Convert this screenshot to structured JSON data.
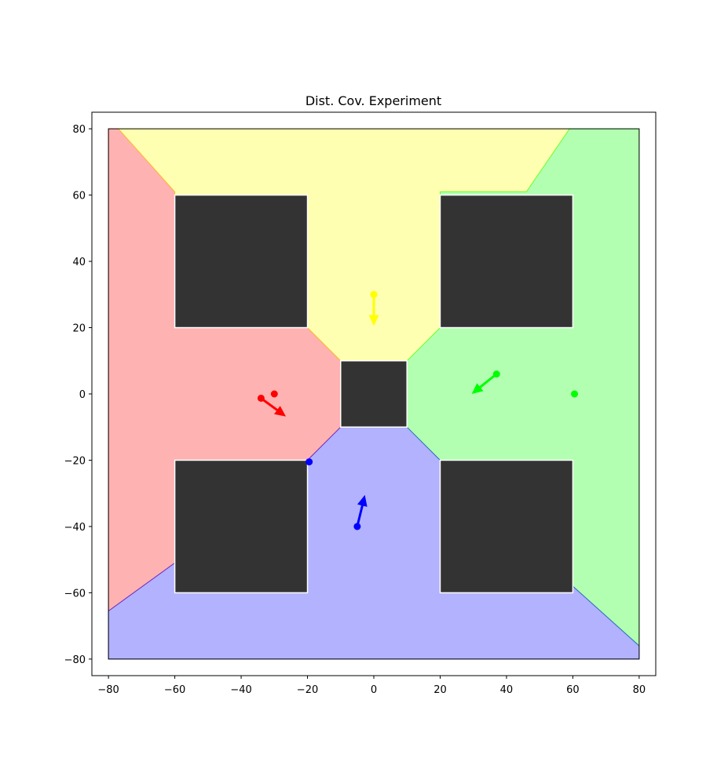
{
  "chart_data": {
    "type": "scatter",
    "title": "Dist. Cov. Experiment",
    "xlabel": "",
    "ylabel": "",
    "xlim": [
      -85,
      85
    ],
    "ylim": [
      -85,
      85
    ],
    "xticks": [
      -80,
      -60,
      -40,
      -20,
      0,
      20,
      40,
      60,
      80
    ],
    "yticks": [
      -80,
      -60,
      -40,
      -20,
      0,
      20,
      40,
      60,
      80
    ],
    "grid": false,
    "workspace": [
      [
        -80,
        -80
      ],
      [
        80,
        -80
      ],
      [
        80,
        80
      ],
      [
        -80,
        80
      ]
    ],
    "regions": [
      {
        "name": "red",
        "color": "#ff0000",
        "polygon": [
          [
            -80,
            80
          ],
          [
            -77,
            80
          ],
          [
            -60,
            61
          ],
          [
            -60,
            20
          ],
          [
            -20,
            20
          ],
          [
            -10,
            10
          ],
          [
            -10,
            -10
          ],
          [
            -20,
            -20
          ],
          [
            -60,
            -20
          ],
          [
            -60,
            -51
          ],
          [
            -80,
            -65.5
          ]
        ]
      },
      {
        "name": "yellow",
        "color": "#ffff00",
        "polygon": [
          [
            -77,
            80
          ],
          [
            59,
            80
          ],
          [
            46,
            61
          ],
          [
            20,
            61
          ],
          [
            20,
            20
          ],
          [
            10,
            10
          ],
          [
            -10,
            10
          ],
          [
            -20,
            20
          ],
          [
            -60,
            20
          ],
          [
            -60,
            61
          ]
        ]
      },
      {
        "name": "green",
        "color": "#00ff00",
        "polygon": [
          [
            59,
            80
          ],
          [
            80,
            80
          ],
          [
            80,
            -76
          ],
          [
            60,
            -58
          ],
          [
            60,
            -20
          ],
          [
            20,
            -20
          ],
          [
            10,
            -10
          ],
          [
            10,
            10
          ],
          [
            20,
            20
          ],
          [
            20,
            61
          ],
          [
            46,
            61
          ]
        ]
      },
      {
        "name": "blue",
        "color": "#0000ff",
        "polygon": [
          [
            -80,
            -65.5
          ],
          [
            -60,
            -51
          ],
          [
            -60,
            -60
          ],
          [
            -20,
            -60
          ],
          [
            -20,
            -20
          ],
          [
            -10,
            -10
          ],
          [
            10,
            -10
          ],
          [
            20,
            -20
          ],
          [
            20,
            -60
          ],
          [
            60,
            -60
          ],
          [
            60,
            -58
          ],
          [
            80,
            -76
          ],
          [
            80,
            -80
          ],
          [
            -80,
            -80
          ]
        ]
      }
    ],
    "obstacles": [
      {
        "xmin": -60,
        "ymin": 20,
        "xmax": -20,
        "ymax": 60
      },
      {
        "xmin": 20,
        "ymin": 20,
        "xmax": 60,
        "ymax": 60
      },
      {
        "xmin": -10,
        "ymin": -10,
        "xmax": 10,
        "ymax": 10
      },
      {
        "xmin": -60,
        "ymin": -60,
        "xmax": -20,
        "ymax": -20
      },
      {
        "xmin": 20,
        "ymin": -60,
        "xmax": 60,
        "ymax": -20
      }
    ],
    "agents": [
      {
        "color": "#ff0000",
        "position": [
          -34,
          -1.3
        ],
        "goal": [
          -30,
          0
        ],
        "velocity": [
          7.5,
          -5.5
        ]
      },
      {
        "color": "#ffff00",
        "position": [
          0,
          30
        ],
        "goal": [
          0,
          30
        ],
        "velocity": [
          0,
          -9.5
        ]
      },
      {
        "color": "#00ff00",
        "position": [
          37,
          6
        ],
        "goal": [
          60.5,
          0
        ],
        "velocity": [
          -7.5,
          -6
        ]
      },
      {
        "color": "#0000ff",
        "position": [
          -5,
          -40
        ],
        "goal": [
          -19.5,
          -20.5
        ],
        "velocity": [
          2.3,
          9.5
        ]
      }
    ]
  }
}
